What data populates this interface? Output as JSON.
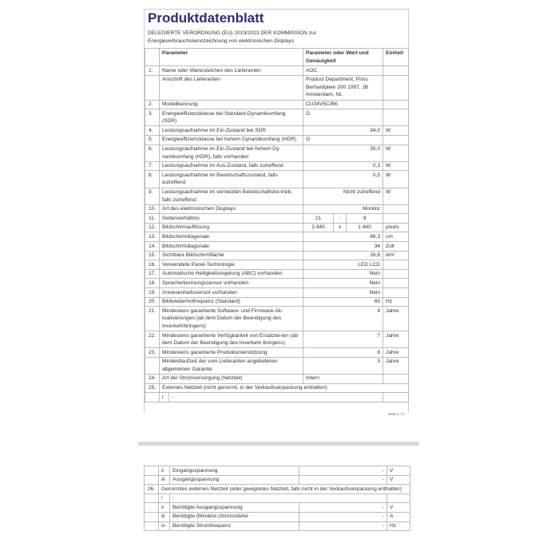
{
  "page1": {
    "title": "Produktdatenblatt",
    "subtitle_line1": "DELEGIERTE VERORDNUNG (EU) 2019/2013 DER KOMMISSION zur",
    "subtitle_line2": "Energieverbrauchskennzeichnung von elektronischen Displays",
    "headers": {
      "parameter": "Parameter",
      "value": "Parameter oder Wert und Genauigkeit",
      "unit": "Einheit"
    },
    "rows": [
      {
        "num": "1.",
        "param": "Name oder Warenzeichen des Lieferanten",
        "value": "AOC",
        "unit": "",
        "align": "left"
      },
      {
        "num": "",
        "param": "Anschrift des Lieferanten",
        "value": "Product Department, Prins Berhardplein 200 1097, JB Amsterdam, NL",
        "unit": "",
        "align": "left"
      },
      {
        "num": "2.",
        "param": "Modellkennung",
        "value": "CU34V5C/BK",
        "unit": "",
        "align": "left"
      },
      {
        "num": "3.",
        "param": "Energieeffizienzklasse bei Standard-Dynamikumfang (SDR)",
        "value": "G",
        "unit": "",
        "align": "left"
      },
      {
        "num": "4.",
        "param": "Leistungsaufnahme im Ein-Zustand bei SDR",
        "value": "34,0",
        "unit": "W",
        "align": "right"
      },
      {
        "num": "5.",
        "param": "Energieeffizienzklasse bei hohem Dynamikumfang (HDR)",
        "value": "G",
        "unit": "",
        "align": "left"
      },
      {
        "num": "6.",
        "param": "Leistungsaufnahme im Ein-Zustand bei hohem Dy-namikumfang (HDR), falls vorhanden",
        "value": "35,0",
        "unit": "W",
        "align": "right"
      },
      {
        "num": "7.",
        "param": "Leistungsaufnahme im Aus-Zustand, falls zutreffend",
        "value": "0,3",
        "unit": "W",
        "align": "right"
      },
      {
        "num": "8.",
        "param": "Leistungsaufnahme im Bereitschaftszustand, falls zutreffend",
        "value": "0,5",
        "unit": "W",
        "align": "right"
      },
      {
        "num": "9.",
        "param": "Leistungsaufnahme im vernetzten Bereitschaftsbe-trieb, falls zutreffend",
        "value": "Nicht zutreffend",
        "unit": "W",
        "align": "right"
      },
      {
        "num": "10.",
        "param": "Art des elektronischen Displays",
        "value": "Monitor",
        "unit": "",
        "align": "right"
      },
      {
        "num": "11.",
        "param": "Seitenverhältnis",
        "split": [
          "21",
          ":",
          "9"
        ],
        "unit": ""
      },
      {
        "num": "12.",
        "param": "Bildschirmauflösung",
        "split": [
          "3 440",
          "x",
          "1 440"
        ],
        "unit": "pixels"
      },
      {
        "num": "13.",
        "param": "Bildschirmdiagonale",
        "value": "86,3",
        "unit": "cm",
        "align": "right"
      },
      {
        "num": "14.",
        "param": "Bildschirmdiagonale",
        "value": "34",
        "unit": "Zoll",
        "align": "right"
      },
      {
        "num": "15.",
        "param": "Sichtbare Bildschirmfläche",
        "value": "26,6",
        "unit": "dm²",
        "align": "right"
      },
      {
        "num": "16.",
        "param": "Verwendete Panel-Technologie",
        "value": "LED LCD",
        "unit": "",
        "align": "right"
      },
      {
        "num": "17.",
        "param": "Automatische Helligkeitsregelung (ABC) vorhanden",
        "value": "Nein",
        "unit": "",
        "align": "right"
      },
      {
        "num": "18.",
        "param": "Spracherkennungssensor vorhanden",
        "value": "Nein",
        "unit": "",
        "align": "right"
      },
      {
        "num": "19.",
        "param": "Anwesenheitssensor vorhanden",
        "value": "Nein",
        "unit": "",
        "align": "right"
      },
      {
        "num": "20.",
        "param": "Bildwiederholfrequenz (Standard)",
        "value": "60",
        "unit": "Hz",
        "align": "right"
      },
      {
        "num": "21.",
        "param": "Mindestens garantierte Software- und Firmware-Ak-tualisierungen (ab dem Datum der Beendigung des Inverkehrbringens)",
        "value": "8",
        "unit": "Jahre",
        "align": "right"
      },
      {
        "num": "22.",
        "param": "Mindestens garantierte Verfügbarkeit von Ersatztei-len (ab dem Datum der Beendigung des Inverkehr-bringens)",
        "value": "7",
        "unit": "Jahre",
        "align": "right"
      },
      {
        "num": "23.",
        "param": "Mindestens garantierte Produktunterstützung",
        "value": "8",
        "unit": "Jahre",
        "align": "right"
      },
      {
        "num": "",
        "param": "Mindestlaufzeit der vom Lieferanten angebotenen allgemeinen Garantie",
        "value": "3",
        "unit": "Jahre",
        "align": "right"
      },
      {
        "num": "24.",
        "param": "Art der Stromversorgung (Netzteil)",
        "value": "Intern",
        "unit": "",
        "align": "left"
      },
      {
        "num": "25.",
        "span": "Externes Netzteil (nicht genormt, in der Verkaufsverpackung enthalten)"
      },
      {
        "num": "",
        "sub": "i",
        "subspan": "-"
      }
    ],
    "page_label": "Seite 1 / 2"
  },
  "page2": {
    "rows": [
      {
        "num": "",
        "sub": "ii",
        "param": "Eingangsspannung",
        "value": "-",
        "unit": "V"
      },
      {
        "num": "",
        "sub": "iii",
        "param": "Ausgangsspannung",
        "value": "-",
        "unit": "V"
      },
      {
        "num": "26.",
        "span": "Genormtes externes Netzteil (oder geeignetes Netzteil, falls nicht in der Verkaufsverpackung enthalten)"
      },
      {
        "num": "",
        "sub": "i",
        "subspan": "-"
      },
      {
        "num": "",
        "sub": "ii",
        "param": "Benötigte Ausgangsspannung",
        "value": "-",
        "unit": "V"
      },
      {
        "num": "",
        "sub": "iii",
        "param": "Benötigte (Mindest-)Stromstärke",
        "value": "-",
        "unit": "A"
      },
      {
        "num": "",
        "sub": "iv",
        "param": "Benötigte Stromfrequenz",
        "value": "-",
        "unit": "Hz"
      }
    ]
  },
  "colors": {
    "title": "#3b2477",
    "border": "#bbbbbb",
    "separator": "#d8d8d8"
  }
}
